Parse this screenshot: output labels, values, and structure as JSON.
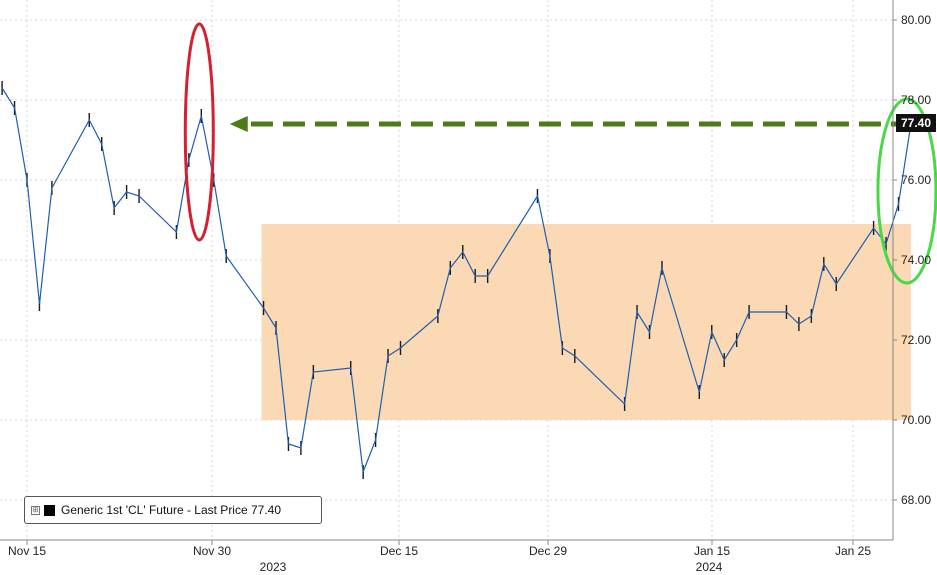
{
  "chart_data": {
    "type": "line",
    "title": "",
    "xlabel": "",
    "ylabel": "",
    "ylim": [
      67.2,
      80.3
    ],
    "y_ticks": [
      "68.00",
      "70.00",
      "72.00",
      "74.00",
      "76.00",
      "78.00",
      "80.00"
    ],
    "x_ticks": [
      "Nov 15",
      "Nov 30",
      "Dec 15",
      "Dec 29",
      "Jan 15",
      "Jan 25"
    ],
    "year_labels": [
      "2023",
      "2024"
    ],
    "grid": true,
    "legend_placement": "bottom-left",
    "last_price_label": "77.40",
    "series": [
      {
        "name": "Generic 1st 'CL' Future - Last Price 77.40",
        "color": "#1f5fb0",
        "x": [
          "2023-11-13",
          "2023-11-14",
          "2023-11-15",
          "2023-11-16",
          "2023-11-17",
          "2023-11-20",
          "2023-11-21",
          "2023-11-22",
          "2023-11-23",
          "2023-11-24",
          "2023-11-27",
          "2023-11-28",
          "2023-11-29",
          "2023-11-30",
          "2023-12-01",
          "2023-12-04",
          "2023-12-05",
          "2023-12-06",
          "2023-12-07",
          "2023-12-08",
          "2023-12-11",
          "2023-12-12",
          "2023-12-13",
          "2023-12-14",
          "2023-12-15",
          "2023-12-18",
          "2023-12-19",
          "2023-12-20",
          "2023-12-21",
          "2023-12-22",
          "2023-12-26",
          "2023-12-27",
          "2023-12-28",
          "2023-12-29",
          "2024-01-02",
          "2024-01-03",
          "2024-01-04",
          "2024-01-05",
          "2024-01-08",
          "2024-01-09",
          "2024-01-10",
          "2024-01-11",
          "2024-01-12",
          "2024-01-15",
          "2024-01-16",
          "2024-01-17",
          "2024-01-18",
          "2024-01-19",
          "2024-01-22",
          "2024-01-23",
          "2024-01-24",
          "2024-01-25"
        ],
        "values": [
          78.3,
          77.8,
          76.0,
          72.9,
          75.8,
          77.5,
          76.9,
          75.3,
          75.7,
          75.6,
          74.7,
          76.5,
          77.6,
          76.0,
          74.1,
          72.8,
          72.3,
          69.4,
          69.3,
          71.2,
          71.3,
          68.7,
          69.5,
          71.6,
          71.8,
          72.6,
          73.8,
          74.2,
          73.6,
          73.6,
          75.6,
          74.1,
          71.8,
          71.6,
          70.4,
          72.7,
          72.2,
          73.8,
          70.7,
          72.2,
          71.5,
          72.0,
          72.7,
          72.7,
          72.4,
          72.6,
          73.9,
          73.4,
          74.8,
          74.4,
          75.4,
          77.4
        ]
      }
    ],
    "annotations": [
      {
        "type": "shaded_range",
        "y_range": [
          70.0,
          74.9
        ],
        "x_range": [
          "2023-12-04",
          "2024-01-25"
        ],
        "color": "#fbd9b4"
      },
      {
        "type": "ellipse",
        "color": "#d42030",
        "around": "2023-11-29"
      },
      {
        "type": "ellipse",
        "color": "#48d848",
        "around": "2024-01-25"
      },
      {
        "type": "dashed_arrow",
        "color": "#4e7a18",
        "y": 77.4,
        "from": "2024-01-25",
        "to": "2023-11-30"
      }
    ]
  },
  "legend": {
    "toggle_icon": "⊞",
    "label": "Generic 1st 'CL' Future - Last Price 77.40"
  }
}
